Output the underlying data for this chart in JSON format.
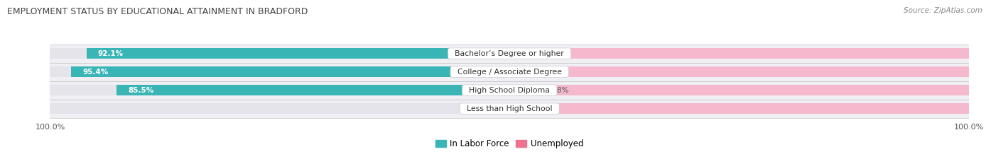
{
  "title": "EMPLOYMENT STATUS BY EDUCATIONAL ATTAINMENT IN BRADFORD",
  "source": "Source: ZipAtlas.com",
  "categories": [
    "Less than High School",
    "High School Diploma",
    "College / Associate Degree",
    "Bachelor’s Degree or higher"
  ],
  "labor_force": [
    0.0,
    85.5,
    95.4,
    92.1
  ],
  "unemployed": [
    0.0,
    6.8,
    0.0,
    0.0
  ],
  "max_value": 100.0,
  "labor_force_color": "#3ab5b5",
  "unemployed_color": "#f07090",
  "unemployed_bg_color": "#f5b8cc",
  "bar_bg_color": "#e4e4ea",
  "row_bg_color": "#efeff4",
  "row_bg_color2": "#ffffff",
  "label_text_color": "#555555",
  "title_color": "#444444",
  "bar_height": 0.58,
  "left_tick_label": "100.0%",
  "right_tick_label": "100.0%",
  "legend_items": [
    "In Labor Force",
    "Unemployed"
  ]
}
